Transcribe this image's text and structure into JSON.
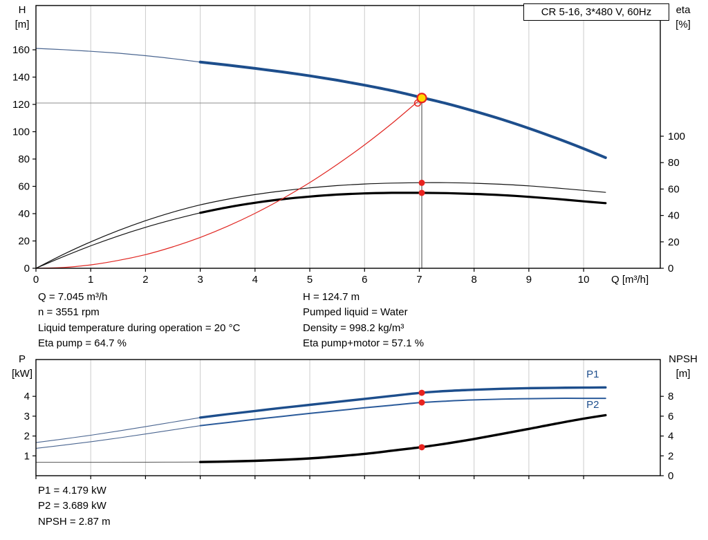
{
  "title_box": "CR 5-16, 3*480 V, 60Hz",
  "colors": {
    "grid": "#cbcbcb",
    "axis": "#000000",
    "curve_blue": "#1d4e8c",
    "curve_blue_thin": "#4a6590",
    "curve_black": "#000000",
    "system_red": "#e02520",
    "marker_red": "#e8231f",
    "duty_fill": "#ffd800",
    "guide_h": "#8c8c8c",
    "guide_v": "#3c3c3c"
  },
  "duty_info": {
    "left": [
      "Q = 7.045 m³/h",
      "n = 3551 rpm",
      "Liquid temperature during operation = 20 °C",
      "Eta pump = 64.7 %"
    ],
    "right": [
      "H = 124.7 m",
      "Pumped liquid = Water",
      "Density = 998.2 kg/m³",
      "Eta pump+motor = 57.1 %"
    ],
    "bottom": [
      "P1 = 4.179 kW",
      "P2 = 3.689 kW",
      "NPSH = 2.87 m"
    ]
  },
  "chart_data": [
    {
      "type": "line",
      "name": "qh-eta-chart",
      "x": {
        "label": "Q [m³/h]",
        "min": 0,
        "max": 11.4,
        "ticks": [
          0,
          1,
          2,
          3,
          4,
          5,
          6,
          7,
          8,
          9,
          10
        ],
        "show_tick_labels": true
      },
      "y_left": {
        "label": "H",
        "unit": "[m]",
        "min": 0,
        "ticks": [
          0,
          20,
          40,
          60,
          80,
          100,
          120,
          140,
          160
        ]
      },
      "y_right": {
        "label": "eta",
        "unit": "[%]",
        "min": 0,
        "ticks": [
          0,
          20,
          40,
          60,
          80,
          100
        ]
      },
      "duty_point": {
        "Q": 7.045,
        "H": 124.7,
        "eta_pump": 64.7,
        "eta_pump_motor": 57.1
      },
      "series": [
        {
          "name": "h-curve-thin",
          "axis": "left",
          "color": "#4a6590",
          "width": 1.2,
          "points": [
            [
              0,
              161
            ],
            [
              0.5,
              160.1
            ],
            [
              1,
              158.9
            ],
            [
              1.5,
              157.5
            ],
            [
              2,
              155.7
            ],
            [
              2.5,
              153.5
            ],
            [
              3,
              151
            ]
          ]
        },
        {
          "name": "h-curve",
          "axis": "left",
          "color": "#1d4e8c",
          "width": 4,
          "points": [
            [
              3,
              151
            ],
            [
              3.5,
              148.8
            ],
            [
              4,
              146.4
            ],
            [
              4.5,
              143.8
            ],
            [
              5,
              140.9
            ],
            [
              5.5,
              137.7
            ],
            [
              6,
              134.1
            ],
            [
              6.5,
              130.1
            ],
            [
              7,
              125.4
            ],
            [
              7.5,
              120.6
            ],
            [
              8,
              115.1
            ],
            [
              8.5,
              109.1
            ],
            [
              9,
              102.5
            ],
            [
              9.5,
              95.3
            ],
            [
              10,
              87.6
            ],
            [
              10.4,
              81
            ]
          ]
        },
        {
          "name": "eta-pump-curve",
          "axis": "right",
          "color": "#111111",
          "width": 1.2,
          "points": [
            [
              0,
              0
            ],
            [
              0.5,
              10.5
            ],
            [
              1,
              20
            ],
            [
              1.5,
              28.5
            ],
            [
              2,
              36
            ],
            [
              2.5,
              42.5
            ],
            [
              3,
              48
            ],
            [
              3.5,
              52.3
            ],
            [
              4,
              55.8
            ],
            [
              4.5,
              58.6
            ],
            [
              5,
              60.9
            ],
            [
              5.5,
              62.6
            ],
            [
              6,
              63.8
            ],
            [
              6.5,
              64.5
            ],
            [
              7,
              64.8
            ],
            [
              7.5,
              64.8
            ],
            [
              8,
              64.4
            ],
            [
              8.5,
              63.6
            ],
            [
              9,
              62.4
            ],
            [
              9.5,
              60.8
            ],
            [
              10,
              59
            ],
            [
              10.4,
              57.5
            ]
          ]
        },
        {
          "name": "eta-pump-motor-thin",
          "axis": "right",
          "color": "#111111",
          "width": 1.2,
          "points": [
            [
              0,
              0
            ],
            [
              0.5,
              8.8
            ],
            [
              1,
              17
            ],
            [
              1.5,
              24.4
            ],
            [
              2,
              31
            ],
            [
              2.5,
              36.8
            ],
            [
              3,
              42
            ]
          ]
        },
        {
          "name": "eta-pump-motor-curve",
          "axis": "right",
          "color": "#000000",
          "width": 3.2,
          "points": [
            [
              3,
              42
            ],
            [
              3.5,
              46.2
            ],
            [
              4,
              49.6
            ],
            [
              4.5,
              52.3
            ],
            [
              5,
              54.3
            ],
            [
              5.5,
              55.8
            ],
            [
              6,
              56.7
            ],
            [
              6.5,
              57.1
            ],
            [
              7,
              57.1
            ],
            [
              7.5,
              56.9
            ],
            [
              8,
              56.3
            ],
            [
              8.5,
              55.4
            ],
            [
              9,
              54.1
            ],
            [
              9.5,
              52.5
            ],
            [
              10,
              50.7
            ],
            [
              10.4,
              49.3
            ]
          ]
        },
        {
          "name": "system-curve",
          "axis": "left",
          "color": "#e02520",
          "width": 1.2,
          "points": [
            [
              0,
              0
            ],
            [
              0.5,
              0.6
            ],
            [
              1,
              2.5
            ],
            [
              1.5,
              5.7
            ],
            [
              2,
              10
            ],
            [
              2.5,
              15.7
            ],
            [
              3,
              22.6
            ],
            [
              3.5,
              30.8
            ],
            [
              4,
              40.2
            ],
            [
              4.5,
              50.9
            ],
            [
              5,
              62.8
            ],
            [
              5.5,
              76
            ],
            [
              6,
              90.4
            ],
            [
              6.5,
              106.1
            ],
            [
              7,
              123.1
            ],
            [
              7.045,
              124.7
            ]
          ]
        }
      ],
      "guides": [
        {
          "dir": "h",
          "value": 121.0,
          "axis": "left",
          "x_from": 0,
          "x_to": 7.045,
          "color": "#8c8c8c"
        },
        {
          "dir": "v",
          "x": 7.045,
          "value_to": 124.7,
          "axis": "left",
          "color": "#3c3c3c"
        }
      ],
      "markers": [
        {
          "shape": "open",
          "x": 6.97,
          "value": 121.0,
          "axis": "left"
        },
        {
          "shape": "duty",
          "x": 7.045,
          "value": 124.7,
          "axis": "left"
        },
        {
          "shape": "dot",
          "x": 7.045,
          "value": 64.7,
          "axis": "right"
        },
        {
          "shape": "dot",
          "x": 7.045,
          "value": 57.1,
          "axis": "right"
        }
      ],
      "labels": []
    },
    {
      "type": "line",
      "name": "power-npsh-chart",
      "x": {
        "label": "",
        "min": 0,
        "max": 11.4,
        "ticks": [
          0,
          1,
          2,
          3,
          4,
          5,
          6,
          7,
          8,
          9,
          10
        ],
        "show_tick_labels": false
      },
      "y_left": {
        "label": "P",
        "unit": "[kW]",
        "min": 0,
        "ticks": [
          1,
          2,
          3,
          4
        ]
      },
      "y_right": {
        "label": "NPSH",
        "unit": "[m]",
        "min": 0,
        "ticks": [
          0,
          2,
          4,
          6,
          8
        ]
      },
      "duty_point": {
        "Q": 7.045,
        "P1_kW": 4.179,
        "P2_kW": 3.689,
        "NPSH_m": 2.87
      },
      "series": [
        {
          "name": "p1-thin",
          "axis": "left",
          "color": "#4a6590",
          "width": 1.1,
          "points": [
            [
              0,
              1.67
            ],
            [
              0.5,
              1.85
            ],
            [
              1,
              2.04
            ],
            [
              1.5,
              2.25
            ],
            [
              2,
              2.47
            ],
            [
              2.5,
              2.7
            ],
            [
              3,
              2.93
            ]
          ]
        },
        {
          "name": "p1-curve",
          "axis": "left",
          "color": "#1d4e8c",
          "width": 3.4,
          "points": [
            [
              3,
              2.93
            ],
            [
              3.5,
              3.1
            ],
            [
              4,
              3.26
            ],
            [
              4.5,
              3.42
            ],
            [
              5,
              3.57
            ],
            [
              5.5,
              3.72
            ],
            [
              6,
              3.87
            ],
            [
              6.5,
              4.02
            ],
            [
              7,
              4.17
            ],
            [
              7.5,
              4.27
            ],
            [
              8,
              4.33
            ],
            [
              8.5,
              4.38
            ],
            [
              9,
              4.41
            ],
            [
              9.5,
              4.43
            ],
            [
              10,
              4.44
            ],
            [
              10.4,
              4.45
            ]
          ]
        },
        {
          "name": "p2-thin",
          "axis": "left",
          "color": "#4a6590",
          "width": 1.1,
          "points": [
            [
              0,
              1.38
            ],
            [
              0.5,
              1.54
            ],
            [
              1,
              1.71
            ],
            [
              1.5,
              1.9
            ],
            [
              2,
              2.1
            ],
            [
              2.5,
              2.31
            ],
            [
              3,
              2.52
            ]
          ]
        },
        {
          "name": "p2-curve",
          "axis": "left",
          "color": "#2a5a9a",
          "width": 2,
          "points": [
            [
              3,
              2.52
            ],
            [
              3.5,
              2.68
            ],
            [
              4,
              2.84
            ],
            [
              4.5,
              2.99
            ],
            [
              5,
              3.14
            ],
            [
              5.5,
              3.28
            ],
            [
              6,
              3.42
            ],
            [
              6.5,
              3.55
            ],
            [
              7,
              3.68
            ],
            [
              7.5,
              3.76
            ],
            [
              8,
              3.82
            ],
            [
              8.5,
              3.86
            ],
            [
              9,
              3.88
            ],
            [
              9.5,
              3.9
            ],
            [
              10,
              3.9
            ],
            [
              10.4,
              3.9
            ]
          ]
        },
        {
          "name": "npsh-thin",
          "axis": "right",
          "color": "#555555",
          "width": 1,
          "points": [
            [
              0,
              1.35
            ],
            [
              1,
              1.35
            ],
            [
              2,
              1.36
            ],
            [
              3,
              1.38
            ]
          ]
        },
        {
          "name": "npsh-curve",
          "axis": "right",
          "color": "#000000",
          "width": 3.4,
          "points": [
            [
              3,
              1.38
            ],
            [
              3.5,
              1.43
            ],
            [
              4,
              1.5
            ],
            [
              4.5,
              1.6
            ],
            [
              5,
              1.74
            ],
            [
              5.5,
              1.95
            ],
            [
              6,
              2.2
            ],
            [
              6.5,
              2.52
            ],
            [
              7,
              2.85
            ],
            [
              7.5,
              3.25
            ],
            [
              8,
              3.7
            ],
            [
              8.5,
              4.2
            ],
            [
              9,
              4.72
            ],
            [
              9.5,
              5.25
            ],
            [
              10,
              5.75
            ],
            [
              10.4,
              6.1
            ]
          ]
        }
      ],
      "guides": [],
      "markers": [
        {
          "shape": "dot",
          "x": 7.045,
          "value": 4.179,
          "axis": "left"
        },
        {
          "shape": "dot",
          "x": 7.045,
          "value": 3.689,
          "axis": "left"
        },
        {
          "shape": "dot",
          "x": 7.045,
          "value": 2.87,
          "axis": "right"
        }
      ],
      "labels": [
        {
          "text": "P1",
          "x": 10.05,
          "value": 4.95,
          "axis": "left",
          "color": "#1d4e8c"
        },
        {
          "text": "P2",
          "x": 10.05,
          "value": 3.42,
          "axis": "left",
          "color": "#1d4e8c"
        }
      ]
    }
  ]
}
